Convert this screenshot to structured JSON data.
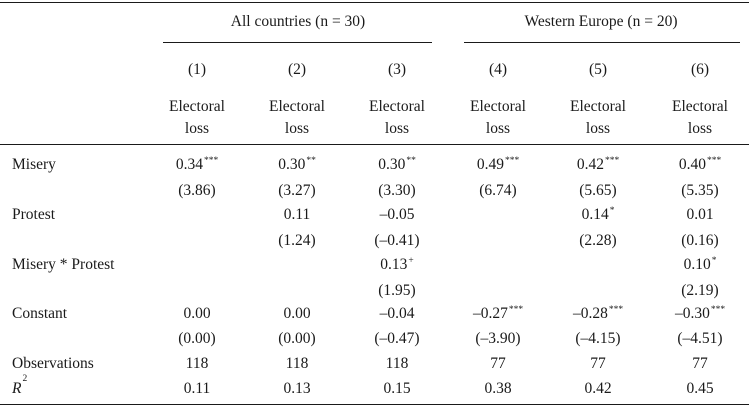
{
  "groups": {
    "all": "All countries (n = 30)",
    "we": "Western Europe (n = 20)"
  },
  "columns": [
    {
      "num": "(1)",
      "dep_line1": "Electoral",
      "dep_line2": "loss"
    },
    {
      "num": "(2)",
      "dep_line1": "Electoral",
      "dep_line2": "loss"
    },
    {
      "num": "(3)",
      "dep_line1": "Electoral",
      "dep_line2": "loss"
    },
    {
      "num": "(4)",
      "dep_line1": "Electoral",
      "dep_line2": "loss"
    },
    {
      "num": "(5)",
      "dep_line1": "Electoral",
      "dep_line2": "loss"
    },
    {
      "num": "(6)",
      "dep_line1": "Electoral",
      "dep_line2": "loss"
    }
  ],
  "rows": [
    {
      "label": "Misery",
      "coef": [
        {
          "v": "0.34",
          "s": "***"
        },
        {
          "v": "0.30",
          "s": "**"
        },
        {
          "v": "0.30",
          "s": "**"
        },
        {
          "v": "0.49",
          "s": "***"
        },
        {
          "v": "0.42",
          "s": "***"
        },
        {
          "v": "0.40",
          "s": "***"
        }
      ],
      "t": [
        "(3.86)",
        "(3.27)",
        "(3.30)",
        "(6.74)",
        "(5.65)",
        "(5.35)"
      ]
    },
    {
      "label": "Protest",
      "coef": [
        {
          "v": "",
          "s": ""
        },
        {
          "v": "0.11",
          "s": ""
        },
        {
          "v": "–0.05",
          "s": ""
        },
        {
          "v": "",
          "s": ""
        },
        {
          "v": "0.14",
          "s": "*"
        },
        {
          "v": "0.01",
          "s": ""
        }
      ],
      "t": [
        "",
        "(1.24)",
        "(–0.41)",
        "",
        "(2.28)",
        "(0.16)"
      ]
    },
    {
      "label": "Misery * Protest",
      "coef": [
        {
          "v": "",
          "s": ""
        },
        {
          "v": "",
          "s": ""
        },
        {
          "v": "0.13",
          "s": "+"
        },
        {
          "v": "",
          "s": ""
        },
        {
          "v": "",
          "s": ""
        },
        {
          "v": "0.10",
          "s": "*"
        }
      ],
      "t": [
        "",
        "",
        "(1.95)",
        "",
        "",
        "(2.19)"
      ]
    },
    {
      "label": "Constant",
      "coef": [
        {
          "v": "0.00",
          "s": ""
        },
        {
          "v": "0.00",
          "s": ""
        },
        {
          "v": "–0.04",
          "s": ""
        },
        {
          "v": "–0.27",
          "s": "***"
        },
        {
          "v": "–0.28",
          "s": "***"
        },
        {
          "v": "–0.30",
          "s": "***"
        }
      ],
      "t": [
        "(0.00)",
        "(0.00)",
        "(–0.47)",
        "(–3.90)",
        "(–4.15)",
        "(–4.51)"
      ]
    }
  ],
  "observations": {
    "label": "Observations",
    "values": [
      "118",
      "118",
      "118",
      "77",
      "77",
      "77"
    ]
  },
  "r2": {
    "label_main": "R",
    "label_sup": "2",
    "values": [
      "0.11",
      "0.13",
      "0.15",
      "0.38",
      "0.42",
      "0.45"
    ]
  }
}
